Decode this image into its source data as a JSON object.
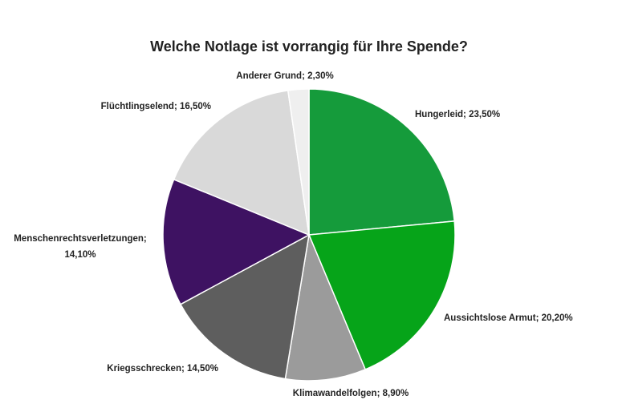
{
  "chart_data": {
    "type": "pie",
    "title": "Welche Notlage ist vorrangig für Ihre Spende?",
    "values": [
      23.5,
      20.2,
      8.9,
      14.5,
      14.1,
      16.5,
      2.3
    ],
    "value_labels": [
      "Hungerleid; 23,50%",
      "Aussichtslose Armut; 20,20%",
      "Klimawandelfolgen; 8,90%",
      "Kriegsschrecken; 14,50%",
      "Menschenrechtsverletzungen; 14,10%",
      "Flüchtlingselend; 16,50%",
      "Anderer Grund; 2,30%"
    ],
    "colors": [
      "#159b3b",
      "#06a419",
      "#9b9b9b",
      "#5e5e5e",
      "#3e1262",
      "#d9d9d9",
      "#efefef"
    ]
  }
}
